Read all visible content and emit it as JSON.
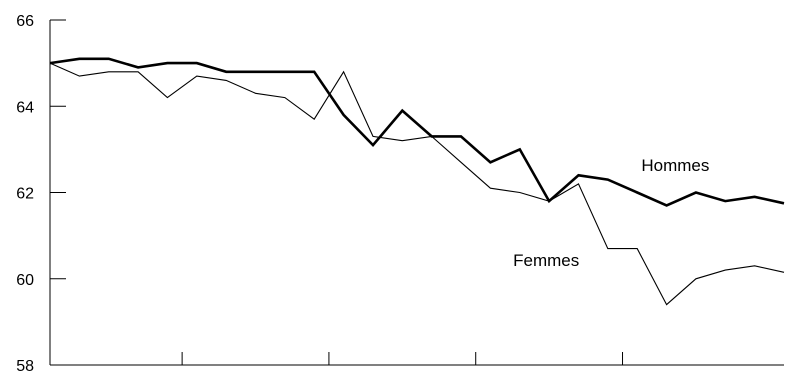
{
  "chart_data": {
    "type": "line",
    "title": "",
    "xlabel": "",
    "ylabel": "",
    "ylim": [
      58,
      66
    ],
    "yticks": [
      58,
      60,
      62,
      64,
      66
    ],
    "x": [
      1,
      2,
      3,
      4,
      5,
      6,
      7,
      8,
      9,
      10,
      11,
      12,
      13,
      14,
      15,
      16,
      17,
      18,
      19,
      20,
      21,
      22,
      23,
      24,
      25,
      26
    ],
    "x_major_ticks": [
      5.5,
      10.5,
      15.5,
      20.5
    ],
    "grid": false,
    "series": [
      {
        "name": "Hommes",
        "color": "#000000",
        "values": [
          65.0,
          65.1,
          65.1,
          64.9,
          65.0,
          65.0,
          64.8,
          64.8,
          64.8,
          64.8,
          63.8,
          63.1,
          63.9,
          63.3,
          63.3,
          62.7,
          63.0,
          61.8,
          62.4,
          62.3,
          62.0,
          61.7,
          62.0,
          61.8,
          61.9,
          61.75
        ]
      },
      {
        "name": "Femmes",
        "color": "#000000",
        "values": [
          65.0,
          64.7,
          64.8,
          64.8,
          64.2,
          64.7,
          64.6,
          64.3,
          64.2,
          63.7,
          64.8,
          63.3,
          63.2,
          63.3,
          62.7,
          62.1,
          62.0,
          61.8,
          62.2,
          60.7,
          60.7,
          59.4,
          60.0,
          60.2,
          60.3,
          60.15
        ]
      }
    ]
  }
}
